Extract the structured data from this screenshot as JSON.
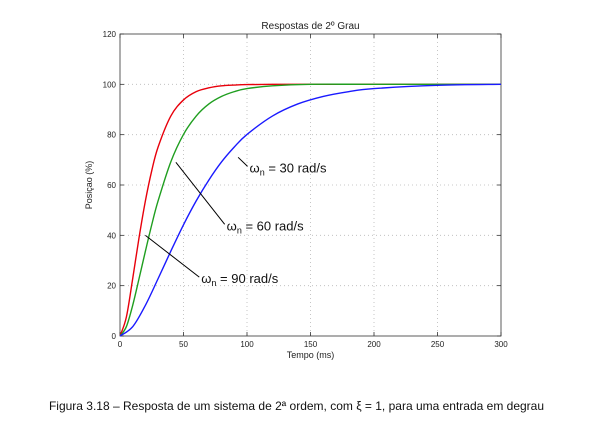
{
  "chart_data": {
    "type": "line",
    "title": "Respostas de 2º Grau",
    "xlabel": "Tempo (ms)",
    "ylabel": "Posiçao (%)",
    "xlim": [
      0,
      300
    ],
    "ylim": [
      0,
      120
    ],
    "xticks": [
      0,
      50,
      100,
      150,
      200,
      250,
      300
    ],
    "yticks": [
      0,
      20,
      40,
      60,
      80,
      100,
      120
    ],
    "grid": true,
    "series": [
      {
        "omega_n": 90,
        "color": "#e8000b",
        "x": [
          0,
          5,
          10,
          15,
          20,
          25,
          30,
          40,
          50,
          60,
          70,
          80,
          90,
          100,
          120,
          150,
          200,
          300
        ],
        "y": [
          0,
          7.5,
          22.8,
          39.1,
          53.7,
          65.7,
          75.1,
          87.4,
          93.8,
          97.1,
          98.6,
          99.4,
          99.7,
          99.9,
          100,
          100,
          100,
          100
        ]
      },
      {
        "omega_n": 60,
        "color": "#1f9e1f",
        "x": [
          0,
          5,
          10,
          15,
          20,
          25,
          30,
          40,
          50,
          60,
          70,
          80,
          90,
          100,
          120,
          150,
          200,
          300
        ],
        "y": [
          0,
          3.7,
          12.2,
          22.8,
          33.7,
          44.2,
          53.7,
          69.2,
          80.1,
          87.4,
          92.2,
          95.2,
          97.1,
          98.3,
          99.4,
          100,
          100,
          100
        ]
      },
      {
        "omega_n": 30,
        "color": "#1a1aff",
        "x": [
          0,
          10,
          20,
          30,
          40,
          50,
          60,
          70,
          80,
          90,
          100,
          120,
          140,
          160,
          180,
          200,
          250,
          300
        ],
        "y": [
          0,
          3.7,
          12.2,
          22.8,
          33.7,
          44.2,
          53.7,
          62.0,
          69.2,
          75.1,
          80.1,
          87.4,
          92.2,
          95.2,
          97.1,
          98.3,
          99.6,
          100
        ]
      }
    ],
    "annotations": [
      {
        "prefix": "ω",
        "sub": "n",
        "text": " = 30 rad/s",
        "omega_n": 30,
        "point": [
          93,
          71
        ],
        "label_at": [
          102,
          65
        ]
      },
      {
        "prefix": "ω",
        "sub": "n",
        "text": " = 60 rad/s",
        "omega_n": 60,
        "point": [
          44,
          69
        ],
        "label_at": [
          84,
          42
        ]
      },
      {
        "prefix": "ω",
        "sub": "n",
        "text": " = 90 rad/s",
        "omega_n": 90,
        "point": [
          20,
          40
        ],
        "label_at": [
          64,
          21
        ]
      }
    ]
  },
  "caption": "Figura 3.18 – Resposta de um sistema de 2ª ordem, com ξ = 1, para uma entrada em degrau"
}
